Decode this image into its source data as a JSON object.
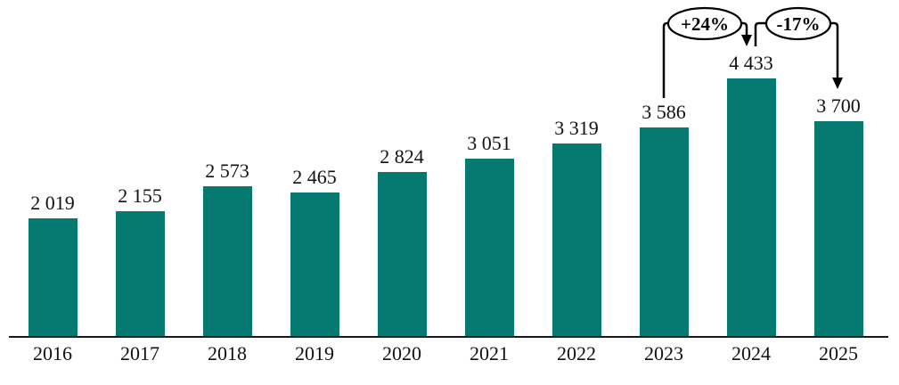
{
  "chart_data": {
    "type": "bar",
    "title": "",
    "xlabel": "",
    "ylabel": "",
    "categories": [
      "2016",
      "2017",
      "2018",
      "2019",
      "2020",
      "2021",
      "2022",
      "2023",
      "2024",
      "2025"
    ],
    "values": [
      2019,
      2155,
      2573,
      2465,
      2824,
      3051,
      3319,
      3586,
      4433,
      3700
    ],
    "value_labels": [
      "2 019",
      "2 155",
      "2 573",
      "2 465",
      "2 824",
      "3 051",
      "3 319",
      "3 586",
      "4 433",
      "3 700"
    ],
    "ylim": [
      0,
      4600
    ],
    "grid": false,
    "legend": false,
    "bar_color": "#067a70",
    "axis_color": "#1a1a1a",
    "label_color": "#111111",
    "annotations": [
      {
        "label": "+24%",
        "from": "2023",
        "to": "2024",
        "shape": "ellipse-bubble-with-bracket-arrow"
      },
      {
        "label": "-17%",
        "from": "2024",
        "to": "2025",
        "shape": "ellipse-bubble-with-bracket-arrow"
      }
    ]
  }
}
